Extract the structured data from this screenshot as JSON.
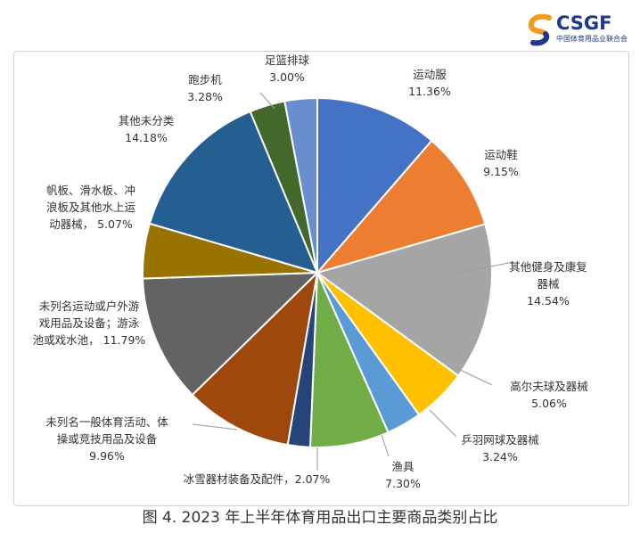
{
  "logo": {
    "name": "CSGF",
    "subtitle": "中国体育用品业联合会",
    "colors": {
      "orange": "#f39a1e",
      "blue": "#1d3a8a"
    }
  },
  "caption": "图 4. 2023 年上半年体育用品出口主要商品类别占比",
  "chart_data": {
    "type": "pie",
    "title": "",
    "start": "12 o'clock, clockwise",
    "slices": [
      {
        "label": [
          "运动服"
        ],
        "percent": "11.36%",
        "value": 11.36,
        "color": "#4472c4"
      },
      {
        "label": [
          "运动鞋"
        ],
        "percent": "9.15%",
        "value": 9.15,
        "color": "#ed7d31"
      },
      {
        "label": [
          "其他健身及康复",
          "器械"
        ],
        "percent": "14.54%",
        "value": 14.54,
        "color": "#a5a5a5"
      },
      {
        "label": [
          "高尔夫球及器械"
        ],
        "percent": "5.06%",
        "value": 5.06,
        "color": "#ffc000"
      },
      {
        "label": [
          "乒羽网球及器械"
        ],
        "percent": "3.24%",
        "value": 3.24,
        "color": "#5b9bd5"
      },
      {
        "label": [
          "渔具"
        ],
        "percent": "7.30%",
        "value": 7.3,
        "color": "#70ad47"
      },
      {
        "label": [
          "冰雪器材装备及配件，2.07%"
        ],
        "percent": "",
        "value": 2.07,
        "color": "#264478"
      },
      {
        "label": [
          "未列名一般体育活动、体",
          "操或竞技用品及设备"
        ],
        "percent": "9.96%",
        "value": 9.96,
        "color": "#9e480e"
      },
      {
        "label": [
          "未列名运动或户外游",
          "戏用品及设备；游泳",
          "池或戏水池， 11.79%"
        ],
        "percent": "",
        "value": 11.79,
        "color": "#636363"
      },
      {
        "label": [
          "帆板、滑水板、冲",
          "浪板及其他水上运",
          "动器械， 5.07%"
        ],
        "percent": "",
        "value": 5.07,
        "color": "#997300"
      },
      {
        "label": [
          "其他未分类"
        ],
        "percent": "14.18%",
        "value": 14.18,
        "color": "#255e91"
      },
      {
        "label": [
          "跑步机"
        ],
        "percent": "3.28%",
        "value": 3.28,
        "color": "#43682b"
      },
      {
        "label": [
          "足篮排球"
        ],
        "percent": "3.00%",
        "value": 3.0,
        "color": "#698ed0"
      }
    ]
  }
}
